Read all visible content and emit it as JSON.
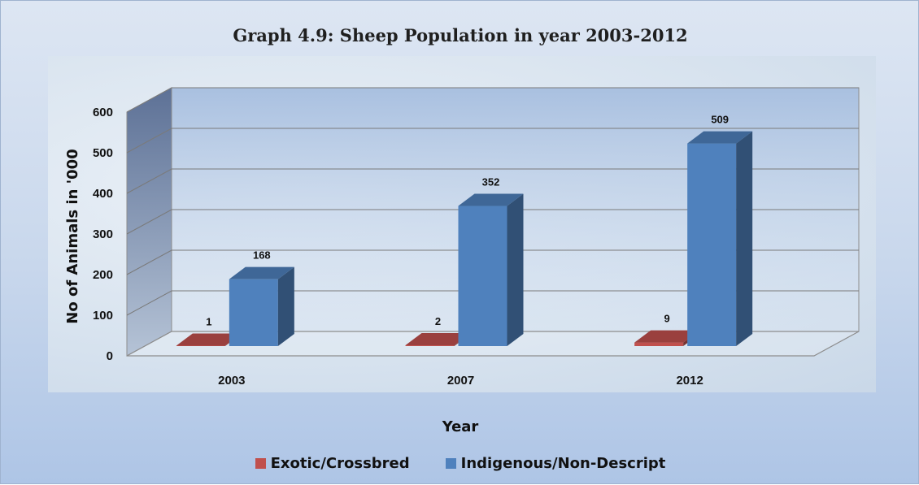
{
  "chart_data": {
    "type": "bar",
    "title": "Graph 4.9: Sheep Population in year 2003-2012",
    "xlabel": "Year",
    "ylabel": "No of Animals in '000",
    "categories": [
      "2003",
      "2007",
      "2012"
    ],
    "series": [
      {
        "name": "Exotic/Crossbred",
        "values": [
          1,
          2,
          9
        ],
        "color": "#c0504d"
      },
      {
        "name": "Indigenous/Non-Descript",
        "values": [
          168,
          352,
          509
        ],
        "color": "#4f81bd"
      }
    ],
    "ylim": [
      0,
      600
    ],
    "yticks": [
      0,
      100,
      200,
      300,
      400,
      500,
      600
    ],
    "grid": true,
    "legend_position": "bottom",
    "three_d": true
  }
}
